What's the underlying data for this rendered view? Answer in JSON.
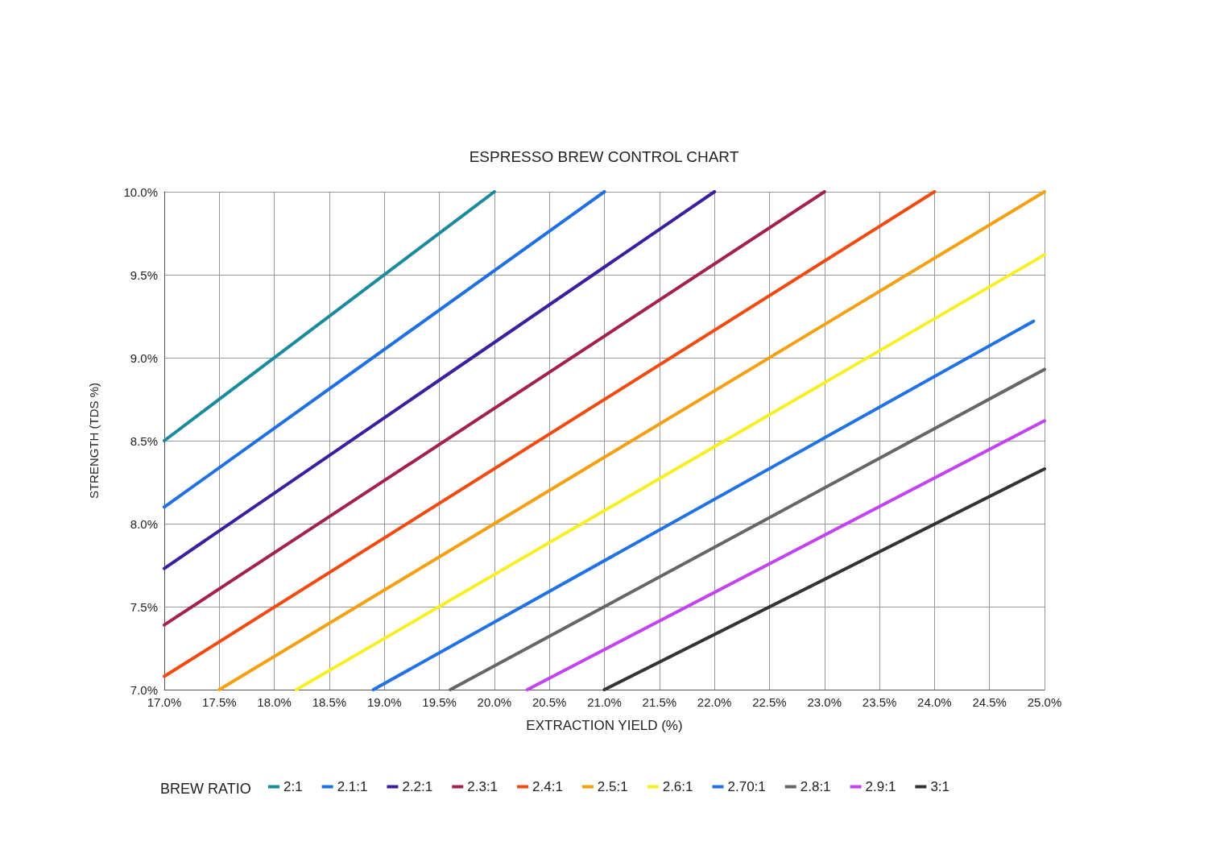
{
  "chart_data": {
    "type": "line",
    "title": "ESPRESSO BREW CONTROL CHART",
    "xlabel": "EXTRACTION YIELD (%)",
    "ylabel": "STRENGTH (TDS %)",
    "legend_title": "BREW RATIO",
    "legend": "bottom",
    "grid": true,
    "marker": "none",
    "line_style": "solid",
    "xlim": [
      17,
      25
    ],
    "ylim": [
      7,
      10
    ],
    "xticks": [
      {
        "value": 17,
        "label": "17.0%"
      },
      {
        "value": 17.5,
        "label": "17.5%"
      },
      {
        "value": 18,
        "label": "18.0%"
      },
      {
        "value": 18.5,
        "label": "18.5%"
      },
      {
        "value": 19,
        "label": "19.0%"
      },
      {
        "value": 19.5,
        "label": "19.5%"
      },
      {
        "value": 20,
        "label": "20.0%"
      },
      {
        "value": 20.5,
        "label": "20.5%"
      },
      {
        "value": 21,
        "label": "21.0%"
      },
      {
        "value": 21.5,
        "label": "21.5%"
      },
      {
        "value": 22,
        "label": "22.0%"
      },
      {
        "value": 22.5,
        "label": "22.5%"
      },
      {
        "value": 23,
        "label": "23.0%"
      },
      {
        "value": 23.5,
        "label": "23.5%"
      },
      {
        "value": 24,
        "label": "24.0%"
      },
      {
        "value": 24.5,
        "label": "24.5%"
      },
      {
        "value": 25,
        "label": "25.0%"
      }
    ],
    "yticks": [
      {
        "value": 7,
        "label": "7.0%"
      },
      {
        "value": 7.5,
        "label": "7.5%"
      },
      {
        "value": 8,
        "label": "8.0%"
      },
      {
        "value": 8.5,
        "label": "8.5%"
      },
      {
        "value": 9,
        "label": "9.0%"
      },
      {
        "value": 9.5,
        "label": "9.5%"
      },
      {
        "value": 10,
        "label": "10.0%"
      }
    ],
    "series": [
      {
        "name": "2:1",
        "color": "#1b8a9c",
        "x": [
          17,
          20
        ],
        "values": [
          8.5,
          10
        ]
      },
      {
        "name": "2.1:1",
        "color": "#1f6fe5",
        "x": [
          17,
          21
        ],
        "values": [
          8.1,
          10
        ]
      },
      {
        "name": "2.2:1",
        "color": "#3b1f9e",
        "x": [
          17,
          22
        ],
        "values": [
          7.73,
          10
        ]
      },
      {
        "name": "2.3:1",
        "color": "#a3214f",
        "x": [
          17,
          23
        ],
        "values": [
          7.39,
          10
        ]
      },
      {
        "name": "2.4:1",
        "color": "#f24b12",
        "x": [
          17,
          24
        ],
        "values": [
          7.08,
          10
        ]
      },
      {
        "name": "2.5:1",
        "color": "#f5a011",
        "x": [
          17.5,
          25
        ],
        "values": [
          7,
          10
        ]
      },
      {
        "name": "2.6:1",
        "color": "#f7ef26",
        "x": [
          18.2,
          25
        ],
        "values": [
          7,
          9.62
        ]
      },
      {
        "name": "2.70:1",
        "color": "#2172e6",
        "x": [
          18.9,
          24.9
        ],
        "values": [
          7,
          9.22
        ]
      },
      {
        "name": "2.8:1",
        "color": "#666666",
        "x": [
          19.6,
          25
        ],
        "values": [
          7,
          8.93
        ]
      },
      {
        "name": "2.9:1",
        "color": "#c243f2",
        "x": [
          20.3,
          25
        ],
        "values": [
          7,
          8.62
        ]
      },
      {
        "name": "3:1",
        "color": "#333333",
        "x": [
          21,
          25
        ],
        "values": [
          7,
          8.33
        ]
      }
    ]
  }
}
